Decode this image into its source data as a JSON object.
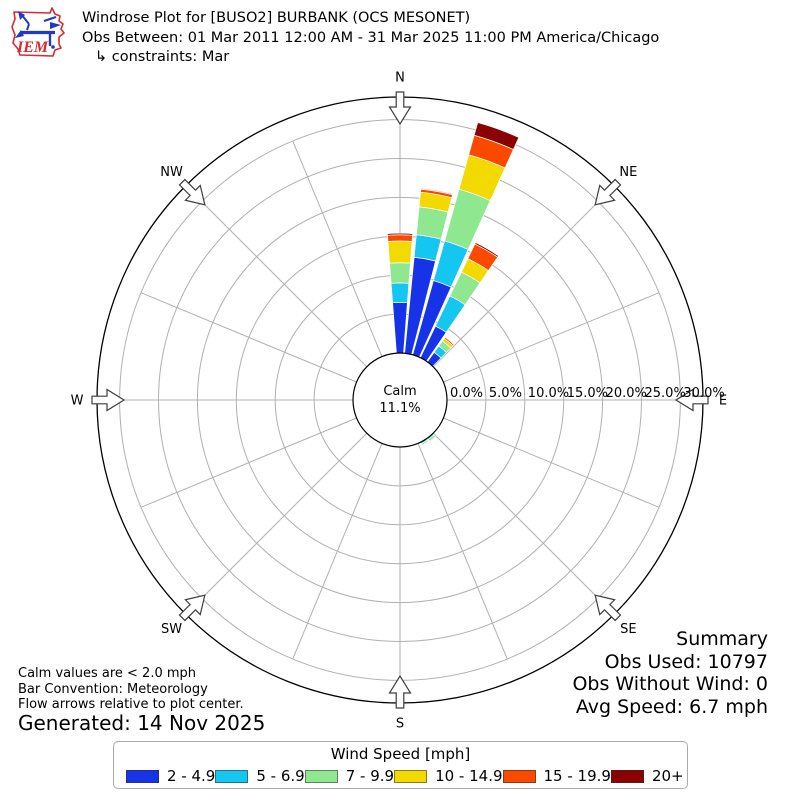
{
  "header": {
    "title": "Windrose Plot for [BUSO2] BURBANK (OCS MESONET)",
    "subtitle": "Obs Between: 01 Mar 2011 12:00 AM - 31 Mar 2025 11:00 PM America/Chicago",
    "constraints": "↳ constraints: Mar",
    "logo_text": "IEM"
  },
  "plot": {
    "compass_labels": [
      "N",
      "NE",
      "E",
      "SE",
      "S",
      "SW",
      "W",
      "NW"
    ],
    "radial_ticks": [
      "0.0%",
      "5.0%",
      "10.0%",
      "15.0%",
      "20.0%",
      "25.0%",
      "30.0%"
    ],
    "calm_label": "Calm",
    "calm_value": "11.1%"
  },
  "chart_data": {
    "type": "windrose",
    "units": "mph",
    "bar_convention": "Meteorology",
    "sector_width_deg": 10,
    "radial_axis": {
      "tick_labels": [
        "0.0%",
        "5.0%",
        "10.0%",
        "15.0%",
        "20.0%",
        "25.0%",
        "30.0%"
      ],
      "ticks_pct": [
        0,
        5,
        10,
        15,
        20,
        25,
        30
      ],
      "max_pct": 30
    },
    "speed_bins": [
      {
        "label": "2 - 4.9",
        "color": "#1733e8"
      },
      {
        "label": "5 - 6.9",
        "color": "#15c6f0"
      },
      {
        "label": "7 - 9.9",
        "color": "#8fe88f"
      },
      {
        "label": "10 - 14.9",
        "color": "#f2da00"
      },
      {
        "label": "15 - 19.9",
        "color": "#fb4a00"
      },
      {
        "label": "20+",
        "color": "#8b0000"
      }
    ],
    "calm_pct": 11.1,
    "bars": [
      {
        "dir_deg": 0,
        "segments_pct": [
          6.5,
          2.5,
          2.6,
          2.8,
          0.8,
          0.2
        ]
      },
      {
        "dir_deg": 10,
        "segments_pct": [
          12.4,
          2.9,
          3.6,
          1.9,
          0.4,
          0.1
        ]
      },
      {
        "dir_deg": 20,
        "segments_pct": [
          9.9,
          5.3,
          6.9,
          4.6,
          2.6,
          1.7
        ]
      },
      {
        "dir_deg": 30,
        "segments_pct": [
          4.5,
          4.3,
          3.4,
          1.9,
          2.1,
          0.2
        ]
      },
      {
        "dir_deg": 40,
        "segments_pct": [
          1.5,
          1.0,
          0.8,
          0.4,
          0.2,
          0
        ]
      },
      {
        "dir_deg": 140,
        "segments_pct": [
          0,
          0.2,
          0.3,
          0,
          0,
          0
        ]
      },
      {
        "dir_deg": 150,
        "segments_pct": [
          0,
          0.2,
          0.2,
          0,
          0,
          0
        ]
      }
    ]
  },
  "summary": {
    "title": "Summary",
    "obs_used": "Obs Used: 10797",
    "obs_without_wind": "Obs Without Wind: 0",
    "avg_speed": "Avg Speed: 6.7 mph"
  },
  "notes": {
    "line1": "Calm values are < 2.0 mph",
    "line2": "Bar Convention: Meteorology",
    "line3": "Flow arrows relative to plot center.",
    "generated": "Generated: 14 Nov 2025"
  },
  "legend": {
    "title": "Wind Speed [mph]"
  }
}
